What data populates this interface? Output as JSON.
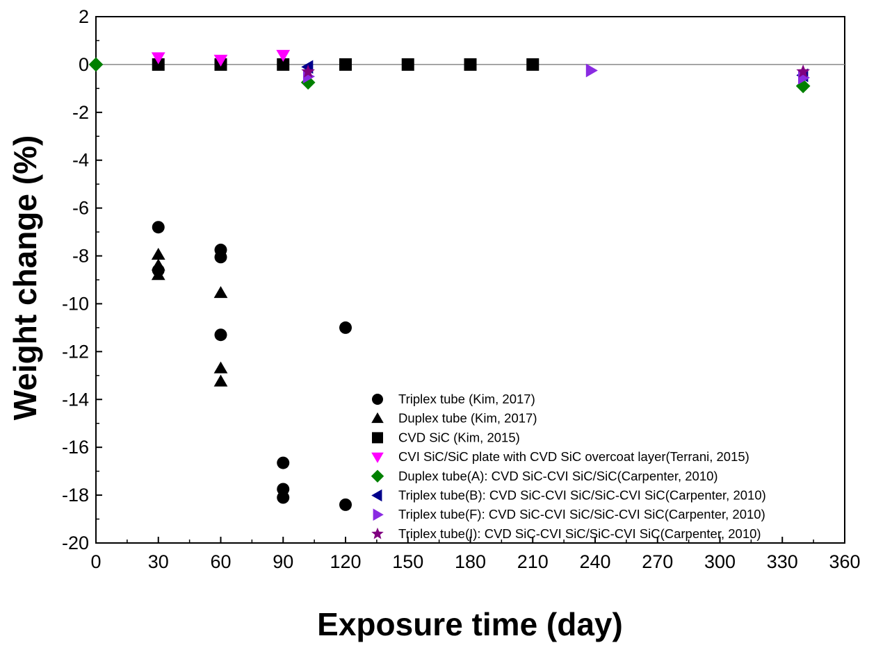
{
  "chart_data": {
    "type": "scatter",
    "xlabel": "Exposure time (day)",
    "ylabel": "Weight change (%)",
    "xlim": [
      0,
      360
    ],
    "ylim": [
      -20,
      2
    ],
    "xticks": [
      "0",
      "30",
      "60",
      "90",
      "120",
      "150",
      "180",
      "210",
      "240",
      "270",
      "300",
      "330",
      "360"
    ],
    "yticks": [
      "2",
      "0",
      "-2",
      "-4",
      "-6",
      "-8",
      "-10",
      "-12",
      "-14",
      "-16",
      "-18",
      "-20"
    ],
    "reference_line": 0,
    "legend_position": "bottom-right",
    "series": [
      {
        "name": "Triplex tube (Kim, 2017)",
        "marker": "circle",
        "color": "#000000",
        "points": [
          [
            30,
            -6.8
          ],
          [
            30,
            -8.6
          ],
          [
            60,
            -7.75
          ],
          [
            60,
            -8.05
          ],
          [
            60,
            -11.3
          ],
          [
            90,
            -16.65
          ],
          [
            90,
            -17.75
          ],
          [
            90,
            -18.1
          ],
          [
            120,
            -11.0
          ],
          [
            120,
            -18.4
          ]
        ]
      },
      {
        "name": "Duplex tube (Kim, 2017)",
        "marker": "triangle-up",
        "color": "#000000",
        "points": [
          [
            30,
            -7.95
          ],
          [
            30,
            -8.4
          ],
          [
            30,
            -8.8
          ],
          [
            60,
            -9.55
          ],
          [
            60,
            -12.7
          ],
          [
            60,
            -13.25
          ]
        ]
      },
      {
        "name": "CVD SiC (Kim, 2015)",
        "marker": "square",
        "color": "#000000",
        "points": [
          [
            30,
            0
          ],
          [
            60,
            0
          ],
          [
            90,
            0
          ],
          [
            120,
            0
          ],
          [
            150,
            0
          ],
          [
            180,
            0
          ],
          [
            210,
            0
          ]
        ]
      },
      {
        "name": "CVI SiC/SiC plate with CVD SiC overcoat layer(Terrani, 2015)",
        "marker": "triangle-down",
        "color": "#ff00ff",
        "points": [
          [
            30,
            0.3
          ],
          [
            60,
            0.2
          ],
          [
            90,
            0.4
          ]
        ]
      },
      {
        "name": "Duplex tube(A): CVD SiC-CVI SiC/SiC(Carpenter, 2010)",
        "marker": "diamond",
        "color": "#008000",
        "points": [
          [
            0,
            0
          ],
          [
            102,
            -0.75
          ],
          [
            340,
            -0.9
          ]
        ]
      },
      {
        "name": "Triplex tube(B): CVD SiC-CVI SiC/SiC-CVI SiC(Carpenter, 2010)",
        "marker": "triangle-left",
        "color": "#00008b",
        "points": [
          [
            102,
            -0.1
          ],
          [
            340,
            -0.45
          ]
        ]
      },
      {
        "name": "Triplex tube(F): CVD SiC-CVI SiC/SiC-CVI SiC(Carpenter, 2010)",
        "marker": "triangle-right",
        "color": "#8a2be2",
        "points": [
          [
            102,
            -0.5
          ],
          [
            238,
            -0.25
          ],
          [
            340,
            -0.55
          ]
        ]
      },
      {
        "name": "Triplex tube(I): CVD SiC-CVI SiC/SiC-CVI SiC(Carpenter, 2010)",
        "marker": "star",
        "color": "#800080",
        "points": [
          [
            102,
            -0.3
          ],
          [
            340,
            -0.3
          ]
        ]
      }
    ]
  }
}
